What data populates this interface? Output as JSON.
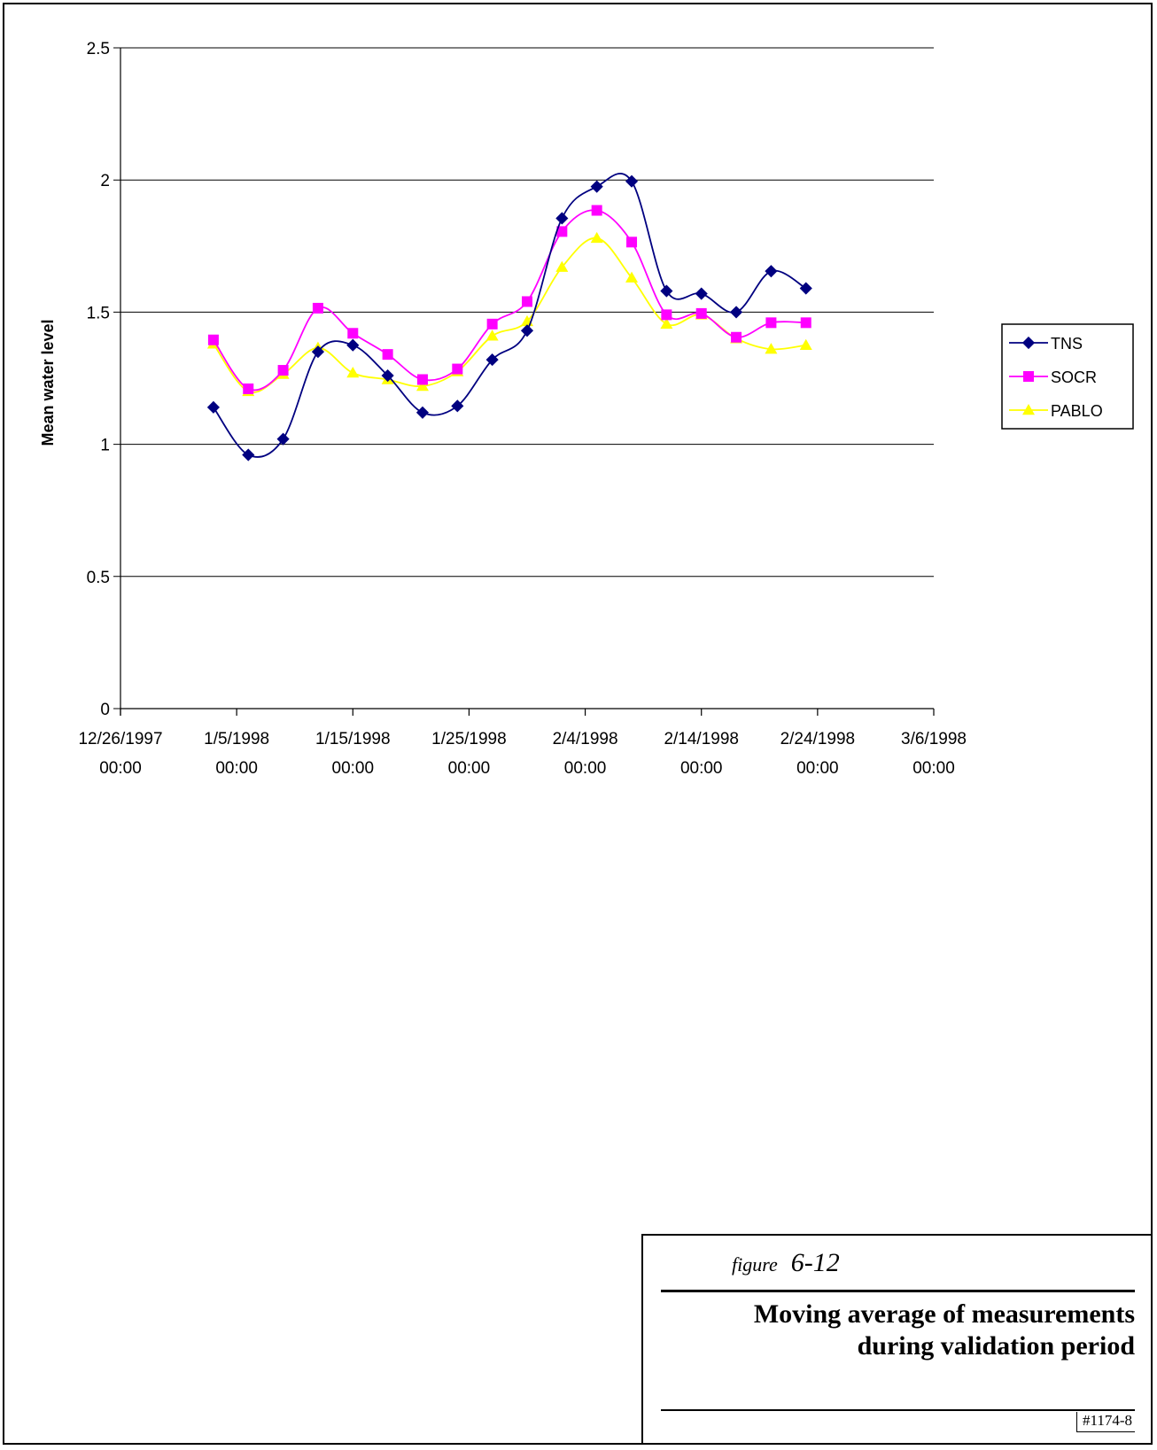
{
  "chart_data": {
    "type": "line",
    "title": "",
    "xlabel": "",
    "ylabel": "Mean water level",
    "ylim": [
      0,
      2.5
    ],
    "xlim": [
      "12/26/1997",
      "3/6/1998"
    ],
    "y_ticks": [
      "0",
      "0.5",
      "1",
      "1.5",
      "2",
      "2.5"
    ],
    "x_ticks": [
      {
        "date": "12/26/1997",
        "lines": [
          "12/26/1997",
          "00:00"
        ]
      },
      {
        "date": "1/5/1998",
        "lines": [
          "1/5/1998",
          "00:00"
        ]
      },
      {
        "date": "1/15/1998",
        "lines": [
          "1/15/1998",
          "00:00"
        ]
      },
      {
        "date": "1/25/1998",
        "lines": [
          "1/25/1998",
          "00:00"
        ]
      },
      {
        "date": "2/4/1998",
        "lines": [
          "2/4/1998",
          "00:00"
        ]
      },
      {
        "date": "2/14/1998",
        "lines": [
          "2/14/1998",
          "00:00"
        ]
      },
      {
        "date": "2/24/1998",
        "lines": [
          "2/24/1998",
          "00:00"
        ]
      },
      {
        "date": "3/6/1998",
        "lines": [
          "3/6/1998",
          "00:00"
        ]
      }
    ],
    "grid": "horizontal",
    "smoothed": true,
    "legend_position": "right",
    "x": [
      "1/3/1998",
      "1/6/1998",
      "1/9/1998",
      "1/12/1998",
      "1/15/1998",
      "1/18/1998",
      "1/21/1998",
      "1/24/1998",
      "1/27/1998",
      "1/30/1998",
      "2/2/1998",
      "2/5/1998",
      "2/8/1998",
      "2/11/1998",
      "2/14/1998",
      "2/17/1998",
      "2/20/1998",
      "2/23/1998",
      "2/26/1998"
    ],
    "series": [
      {
        "name": "TNS",
        "color": "#000080",
        "marker": "diamond",
        "values": [
          1.14,
          0.96,
          1.02,
          1.35,
          1.375,
          1.26,
          1.12,
          1.145,
          1.32,
          1.43,
          1.855,
          1.975,
          1.995,
          1.58,
          1.57,
          1.5,
          1.655,
          1.59,
          null
        ]
      },
      {
        "name": "SOCR",
        "color": "#ff00ff",
        "marker": "square",
        "values": [
          1.395,
          1.21,
          1.28,
          1.515,
          1.42,
          1.34,
          1.245,
          1.285,
          1.455,
          1.54,
          1.805,
          1.885,
          1.765,
          1.49,
          1.495,
          1.405,
          1.46,
          1.46,
          null
        ]
      },
      {
        "name": "PABLO",
        "color": "#ffff00",
        "marker": "triangle",
        "values": [
          1.38,
          1.2,
          1.265,
          1.365,
          1.27,
          1.245,
          1.22,
          1.275,
          1.41,
          1.465,
          1.67,
          1.78,
          1.63,
          1.455,
          1.49,
          1.4,
          1.36,
          1.375,
          null
        ]
      }
    ]
  },
  "caption": {
    "figure_word": "figure",
    "figure_number": "6-12",
    "title": "Moving average of measurements during validation period",
    "id": "#1174-8"
  }
}
